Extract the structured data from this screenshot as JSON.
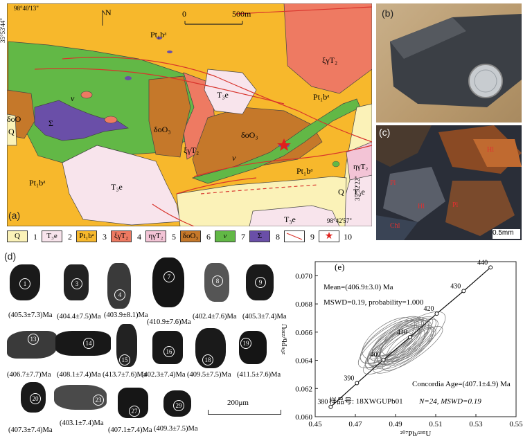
{
  "map": {
    "panel_label": "(a)",
    "coord_top_left_lon": "98°40'13\"",
    "coord_top_left_lat": "35°53'44\"",
    "coord_bottom_right_lon": "98°42'57\"",
    "coord_bottom_right_lat": "35°52'22\"",
    "north": "N",
    "scale_zero": "0",
    "scale_end": "500m",
    "units": {
      "pt1ba": "Pt₁bᵃ",
      "t3e": "T₃e",
      "xigT2": "ξγT₂",
      "etagT2": "ηγT₂",
      "deltaoO3": "δoO₃",
      "deltaoO": "δoO",
      "v": "v",
      "sigma": "Σ",
      "q": "Q"
    }
  },
  "legend": [
    {
      "num": "1",
      "swatch": "Q",
      "label": ""
    },
    {
      "num": "2",
      "swatch": "",
      "label": "T₃e"
    },
    {
      "num": "3",
      "swatch": "Pt₁bᵃ",
      "label": ""
    },
    {
      "num": "4",
      "swatch": "ξγT₂",
      "label": ""
    },
    {
      "num": "5",
      "swatch": "ηγT₂",
      "label": ""
    },
    {
      "num": "6",
      "swatch": "δoO₃",
      "label": ""
    },
    {
      "num": "7",
      "swatch": "v",
      "label": ""
    },
    {
      "num": "8",
      "swatch": "Σ",
      "label": ""
    },
    {
      "num": "9",
      "swatch": "",
      "label": ""
    },
    {
      "num": "10",
      "swatch": "★",
      "label": ""
    }
  ],
  "colors": {
    "pt": "#f7b82c",
    "t3e": "#f8e4ec",
    "xig": "#ee7a62",
    "etag": "#f3c4d6",
    "deltao": "#c5782a",
    "v": "#62b846",
    "sigma": "#6a4fa8",
    "q": "#fbf2b8",
    "fault": "#d8342c",
    "star": "#e0201c"
  },
  "photo_b": {
    "label": "(b)"
  },
  "photo_c": {
    "label": "(c)",
    "scale": "0.5mm",
    "mineral_labels": [
      "Hl",
      "Pl",
      "Hl",
      "Pl",
      "Chl"
    ]
  },
  "zircon": {
    "label": "(d)",
    "scale": "200μm",
    "grains": [
      {
        "num": "1",
        "age": "(405.3±7.3)Ma"
      },
      {
        "num": "3",
        "age": "(404.4±7.5)Ma"
      },
      {
        "num": "4",
        "age": "(403.9±8.1)Ma"
      },
      {
        "num": "7",
        "age": "(410.9±7.6)Ma"
      },
      {
        "num": "8",
        "age": "(402.4±7.6)Ma"
      },
      {
        "num": "9",
        "age": "(405.3±7.4)Ma"
      },
      {
        "num": "13",
        "age": "(406.7±7.7)Ma"
      },
      {
        "num": "14",
        "age": "(408.1±7.4)Ma"
      },
      {
        "num": "15",
        "age": "(413.7±7.6)Ma"
      },
      {
        "num": "16",
        "age": "(402.3±7.4)Ma"
      },
      {
        "num": "18",
        "age": "(409.5±7.5)Ma"
      },
      {
        "num": "19",
        "age": "(411.5±7.6)Ma"
      },
      {
        "num": "20",
        "age": "(407.3±7.4)Ma"
      },
      {
        "num": "23",
        "age": "(403.1±7.4)Ma"
      },
      {
        "num": "27",
        "age": "(407.1±7.4)Ma"
      },
      {
        "num": "29",
        "age": "(409.3±7.5)Ma"
      }
    ]
  },
  "chart_data": {
    "type": "scatter",
    "panel_label": "(e)",
    "xlabel": "²⁰⁷Pb/²³⁵U",
    "ylabel": "²⁰⁶Pb/²³⁸U",
    "xlim": [
      0.45,
      0.55
    ],
    "ylim": [
      0.06,
      0.071
    ],
    "x_ticks": [
      "0.45",
      "0.47",
      "0.49",
      "0.51",
      "0.53",
      "0.55"
    ],
    "y_ticks": [
      "0.060",
      "0.062",
      "0.064",
      "0.066",
      "0.068",
      "0.070"
    ],
    "concordia_ages": [
      {
        "label": "380",
        "x": 0.4577,
        "y": 0.0607
      },
      {
        "label": "390",
        "x": 0.4708,
        "y": 0.06238
      },
      {
        "label": "400",
        "x": 0.484,
        "y": 0.06404
      },
      {
        "label": "410",
        "x": 0.4972,
        "y": 0.06565
      },
      {
        "label": "420",
        "x": 0.5105,
        "y": 0.06731
      },
      {
        "label": "430",
        "x": 0.5239,
        "y": 0.06892
      },
      {
        "label": "440",
        "x": 0.5373,
        "y": 0.07059
      }
    ],
    "mean_text": "Mean=(406.9±3.0) Ma",
    "mswd_text": "MSWD=0.19, probability=1.000",
    "concordia_age_text": "Concordia  Age=(407.1±4.9) Ma",
    "n_text": "N=24, MSWD=0.19",
    "sample_text": "样品号: 18XWGUPb01",
    "n_ellipses": 24,
    "center": {
      "x": 0.4925,
      "y": 0.0652
    }
  }
}
